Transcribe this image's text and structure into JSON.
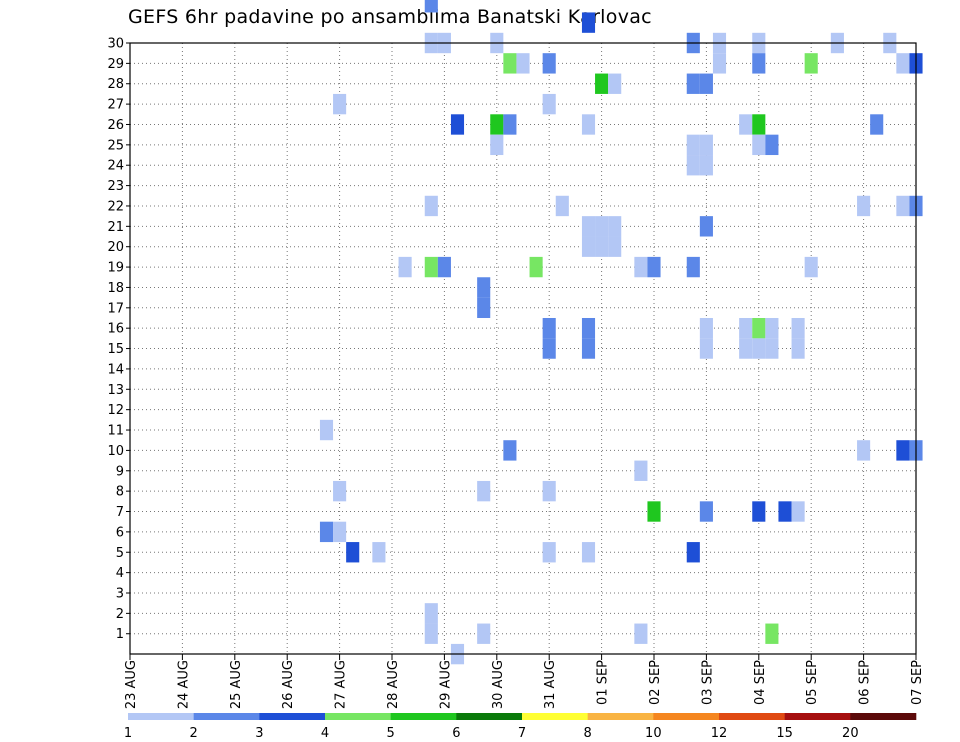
{
  "chart_data": {
    "type": "heatmap",
    "title": "GEFS 6hr padavine po ansamblima Banatski Karlovac",
    "x_tick_labels": [
      "23 AUG",
      "24 AUG",
      "25 AUG",
      "26 AUG",
      "27 AUG",
      "28 AUG",
      "29 AUG",
      "30 AUG",
      "31 AUG",
      "01 SEP",
      "02 SEP",
      "03 SEP",
      "04 SEP",
      "05 SEP",
      "06 SEP",
      "07 SEP"
    ],
    "x_unit": "6-hour steps from 23 AUG 00Z",
    "xlim": [
      0,
      60
    ],
    "y_tick_labels": [
      "1",
      "2",
      "3",
      "4",
      "5",
      "6",
      "7",
      "8",
      "9",
      "10",
      "11",
      "12",
      "13",
      "14",
      "15",
      "16",
      "17",
      "18",
      "19",
      "20",
      "21",
      "22",
      "23",
      "24",
      "25",
      "26",
      "27",
      "28",
      "29",
      "30"
    ],
    "ylim": [
      1,
      30
    ],
    "grid": true,
    "colorbar": {
      "labels": [
        "1",
        "2",
        "3",
        "4",
        "5",
        "6",
        "7",
        "8",
        "10",
        "12",
        "15",
        "20"
      ],
      "colors": [
        "#b3c7f5",
        "#5b87e8",
        "#1e4fd6",
        "#77e663",
        "#1fc71f",
        "#0a7a0a",
        "#ffff33",
        "#f9b443",
        "#f5861f",
        "#e04a12",
        "#a60f0f",
        "#5c0a0a"
      ]
    },
    "cells": [
      {
        "t": 23,
        "m": 31,
        "c": 1
      },
      {
        "t": 35,
        "m": 30,
        "c": 2
      },
      {
        "t": 23,
        "m": 29,
        "c": 0
      },
      {
        "t": 24,
        "m": 29,
        "c": 0
      },
      {
        "t": 28,
        "m": 29,
        "c": 0
      },
      {
        "t": 43,
        "m": 29,
        "c": 1
      },
      {
        "t": 45,
        "m": 29,
        "c": 0
      },
      {
        "t": 48,
        "m": 29,
        "c": 0
      },
      {
        "t": 54,
        "m": 29,
        "c": 0
      },
      {
        "t": 58,
        "m": 29,
        "c": 0
      },
      {
        "t": 29,
        "m": 28,
        "c": 3
      },
      {
        "t": 30,
        "m": 28,
        "c": 0
      },
      {
        "t": 32,
        "m": 28,
        "c": 1
      },
      {
        "t": 45,
        "m": 28,
        "c": 0
      },
      {
        "t": 48,
        "m": 28,
        "c": 1
      },
      {
        "t": 52,
        "m": 28,
        "c": 3
      },
      {
        "t": 59,
        "m": 28,
        "c": 0
      },
      {
        "t": 60,
        "m": 28,
        "c": 2
      },
      {
        "t": 36,
        "m": 27,
        "c": 4
      },
      {
        "t": 37,
        "m": 27,
        "c": 0
      },
      {
        "t": 43,
        "m": 27,
        "c": 1
      },
      {
        "t": 44,
        "m": 27,
        "c": 1
      },
      {
        "t": 16,
        "m": 26,
        "c": 0
      },
      {
        "t": 32,
        "m": 26,
        "c": 0
      },
      {
        "t": 25,
        "m": 25,
        "c": 2
      },
      {
        "t": 28,
        "m": 25,
        "c": 4
      },
      {
        "t": 29,
        "m": 25,
        "c": 1
      },
      {
        "t": 35,
        "m": 25,
        "c": 0
      },
      {
        "t": 47,
        "m": 25,
        "c": 0
      },
      {
        "t": 48,
        "m": 25,
        "c": 4
      },
      {
        "t": 57,
        "m": 25,
        "c": 1
      },
      {
        "t": 28,
        "m": 24,
        "c": 0
      },
      {
        "t": 43,
        "m": 24,
        "c": 0
      },
      {
        "t": 44,
        "m": 24,
        "c": 0
      },
      {
        "t": 48,
        "m": 24,
        "c": 0
      },
      {
        "t": 49,
        "m": 24,
        "c": 1
      },
      {
        "t": 43,
        "m": 23,
        "c": 0
      },
      {
        "t": 44,
        "m": 23,
        "c": 0
      },
      {
        "t": 23,
        "m": 21,
        "c": 0
      },
      {
        "t": 33,
        "m": 21,
        "c": 0
      },
      {
        "t": 56,
        "m": 21,
        "c": 0
      },
      {
        "t": 59,
        "m": 21,
        "c": 0
      },
      {
        "t": 60,
        "m": 21,
        "c": 1
      },
      {
        "t": 35,
        "m": 20,
        "c": 0
      },
      {
        "t": 36,
        "m": 20,
        "c": 0
      },
      {
        "t": 37,
        "m": 20,
        "c": 0
      },
      {
        "t": 44,
        "m": 20,
        "c": 1
      },
      {
        "t": 35,
        "m": 19,
        "c": 0
      },
      {
        "t": 36,
        "m": 19,
        "c": 0
      },
      {
        "t": 37,
        "m": 19,
        "c": 0
      },
      {
        "t": 21,
        "m": 18,
        "c": 0
      },
      {
        "t": 23,
        "m": 18,
        "c": 3
      },
      {
        "t": 24,
        "m": 18,
        "c": 1
      },
      {
        "t": 31,
        "m": 18,
        "c": 3
      },
      {
        "t": 39,
        "m": 18,
        "c": 0
      },
      {
        "t": 40,
        "m": 18,
        "c": 1
      },
      {
        "t": 43,
        "m": 18,
        "c": 1
      },
      {
        "t": 52,
        "m": 18,
        "c": 0
      },
      {
        "t": 27,
        "m": 17,
        "c": 1
      },
      {
        "t": 27,
        "m": 16,
        "c": 1
      },
      {
        "t": 32,
        "m": 15,
        "c": 1
      },
      {
        "t": 35,
        "m": 15,
        "c": 1
      },
      {
        "t": 44,
        "m": 15,
        "c": 0
      },
      {
        "t": 47,
        "m": 15,
        "c": 0
      },
      {
        "t": 48,
        "m": 15,
        "c": 3
      },
      {
        "t": 49,
        "m": 15,
        "c": 0
      },
      {
        "t": 51,
        "m": 15,
        "c": 0
      },
      {
        "t": 32,
        "m": 14,
        "c": 1
      },
      {
        "t": 35,
        "m": 14,
        "c": 1
      },
      {
        "t": 44,
        "m": 14,
        "c": 0
      },
      {
        "t": 47,
        "m": 14,
        "c": 0
      },
      {
        "t": 48,
        "m": 14,
        "c": 0
      },
      {
        "t": 49,
        "m": 14,
        "c": 0
      },
      {
        "t": 51,
        "m": 14,
        "c": 0
      },
      {
        "t": 15,
        "m": 10,
        "c": 0
      },
      {
        "t": 29,
        "m": 9,
        "c": 1
      },
      {
        "t": 56,
        "m": 9,
        "c": 0
      },
      {
        "t": 59,
        "m": 9,
        "c": 2
      },
      {
        "t": 60,
        "m": 9,
        "c": 1
      },
      {
        "t": 39,
        "m": 8,
        "c": 0
      },
      {
        "t": 16,
        "m": 7,
        "c": 0
      },
      {
        "t": 27,
        "m": 7,
        "c": 0
      },
      {
        "t": 32,
        "m": 7,
        "c": 0
      },
      {
        "t": 40,
        "m": 6,
        "c": 4
      },
      {
        "t": 44,
        "m": 6,
        "c": 1
      },
      {
        "t": 48,
        "m": 6,
        "c": 2
      },
      {
        "t": 50,
        "m": 6,
        "c": 2
      },
      {
        "t": 51,
        "m": 6,
        "c": 0
      },
      {
        "t": 15,
        "m": 5,
        "c": 1
      },
      {
        "t": 16,
        "m": 5,
        "c": 0
      },
      {
        "t": 17,
        "m": 4,
        "c": 2
      },
      {
        "t": 19,
        "m": 4,
        "c": 0
      },
      {
        "t": 32,
        "m": 4,
        "c": 0
      },
      {
        "t": 35,
        "m": 4,
        "c": 0
      },
      {
        "t": 43,
        "m": 4,
        "c": 2
      },
      {
        "t": 23,
        "m": 1,
        "c": 0
      },
      {
        "t": 23,
        "m": 0,
        "c": 0
      },
      {
        "t": 27,
        "m": 0,
        "c": 0
      },
      {
        "t": 39,
        "m": 0,
        "c": 0
      },
      {
        "t": 49,
        "m": 0,
        "c": 3
      },
      {
        "t": 25,
        "m": -1,
        "c": 0
      }
    ]
  }
}
